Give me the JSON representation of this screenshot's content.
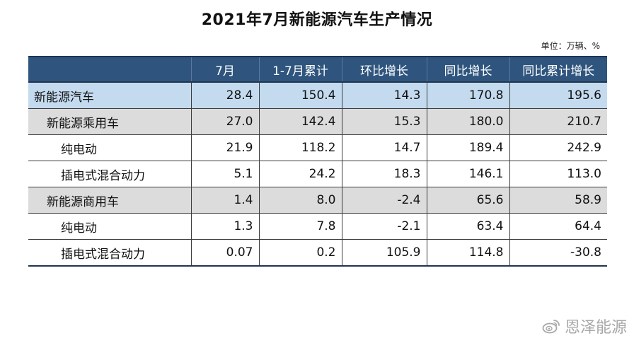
{
  "title": "2021年7月新能源汽车生产情况",
  "unit": "单位：万辆、%",
  "watermark": {
    "icon": "weibo-logo-icon",
    "text": "恩泽能源"
  },
  "colors": {
    "header_bg": "#2f557e",
    "level0_bg": "#c4dbef",
    "level1_bg": "#dcdcdc",
    "level2_bg": "#ffffff"
  },
  "chart_data": {
    "type": "table",
    "columns": [
      "",
      "7月",
      "1-7月累计",
      "环比增长",
      "同比增长",
      "同比累计增长"
    ],
    "rows": [
      {
        "label": "新能源汽车",
        "level": 0,
        "values": [
          "28.4",
          "150.4",
          "14.3",
          "170.8",
          "195.6"
        ]
      },
      {
        "label": "新能源乘用车",
        "level": 1,
        "values": [
          "27.0",
          "142.4",
          "15.3",
          "180.0",
          "210.7"
        ]
      },
      {
        "label": "纯电动",
        "level": 2,
        "values": [
          "21.9",
          "118.2",
          "14.7",
          "189.4",
          "242.9"
        ]
      },
      {
        "label": "插电式混合动力",
        "level": 2,
        "values": [
          "5.1",
          "24.2",
          "18.3",
          "146.1",
          "113.0"
        ]
      },
      {
        "label": "新能源商用车",
        "level": 1,
        "values": [
          "1.4",
          "8.0",
          "-2.4",
          "65.6",
          "58.9"
        ]
      },
      {
        "label": "纯电动",
        "level": 2,
        "values": [
          "1.3",
          "7.8",
          "-2.1",
          "63.4",
          "64.4"
        ]
      },
      {
        "label": "插电式混合动力",
        "level": 2,
        "values": [
          "0.07",
          "0.2",
          "105.9",
          "114.8",
          "-30.8"
        ]
      }
    ]
  }
}
